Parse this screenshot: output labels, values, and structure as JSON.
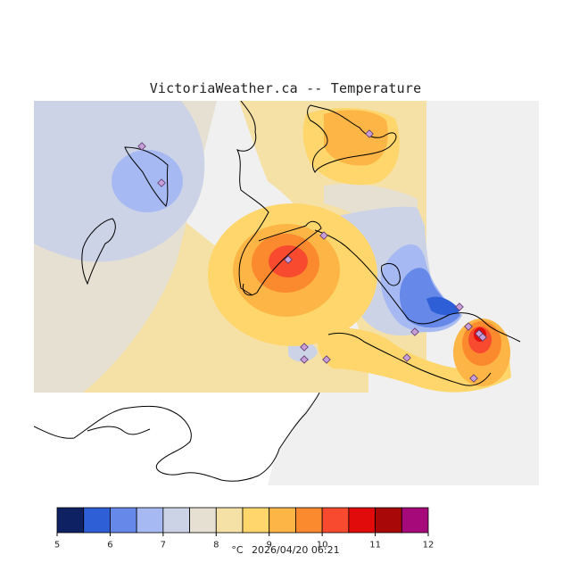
{
  "title": "VictoriaWeather.ca -- Temperature",
  "legend": {
    "unit": "°C",
    "timestamp": "2026/04/20 06:21",
    "ticks": [
      "5",
      "6",
      "7",
      "8",
      "9",
      "10",
      "11",
      "12"
    ],
    "bins": [
      {
        "from": 5.0,
        "to": 5.5,
        "color": "#0d2163"
      },
      {
        "from": 5.5,
        "to": 6.0,
        "color": "#2e5fd6"
      },
      {
        "from": 6.0,
        "to": 6.5,
        "color": "#6688e8"
      },
      {
        "from": 6.5,
        "to": 7.0,
        "color": "#a6b9f2"
      },
      {
        "from": 7.0,
        "to": 7.5,
        "color": "#cdd3e6"
      },
      {
        "from": 7.5,
        "to": 8.0,
        "color": "#e6e0d3"
      },
      {
        "from": 8.0,
        "to": 8.5,
        "color": "#f5e1a6"
      },
      {
        "from": 8.5,
        "to": 9.0,
        "color": "#fed66b"
      },
      {
        "from": 9.0,
        "to": 9.5,
        "color": "#fdb546"
      },
      {
        "from": 9.5,
        "to": 10.0,
        "color": "#fb8a2e"
      },
      {
        "from": 10.0,
        "to": 10.5,
        "color": "#f84a2e"
      },
      {
        "from": 10.5,
        "to": 11.0,
        "color": "#e20b0b"
      },
      {
        "from": 11.0,
        "to": 11.5,
        "color": "#a80808"
      },
      {
        "from": 11.5,
        "to": 12.0,
        "color": "#a60a7a"
      }
    ]
  },
  "map": {
    "background_color": "#f0f0f0",
    "station_color": "#c89ed8",
    "station_count": 15
  }
}
